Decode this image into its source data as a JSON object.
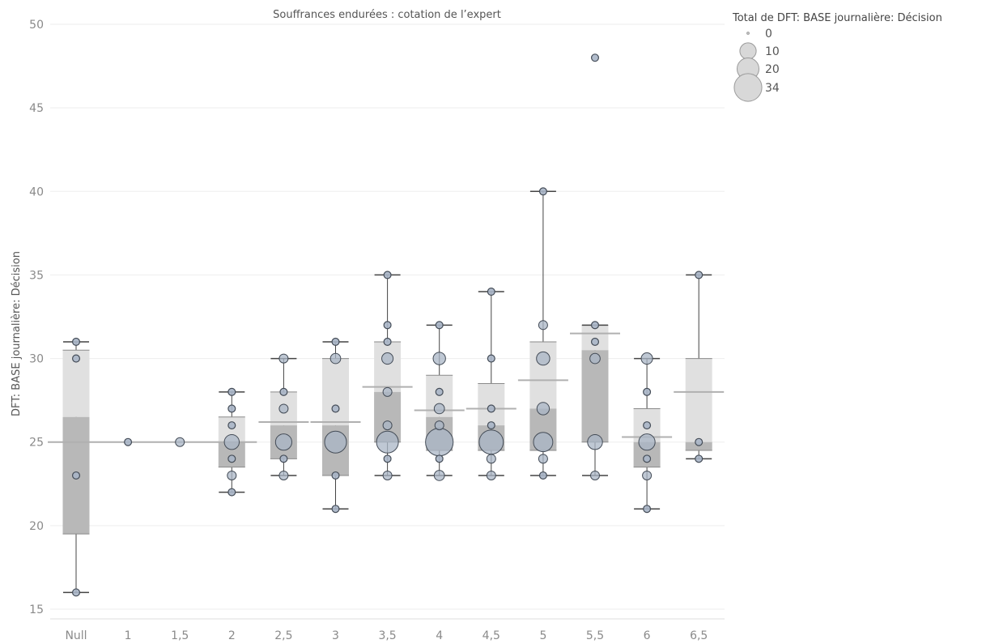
{
  "chart_data": {
    "type": "boxplot",
    "title": "Souffrances endurées : cotation de l’expert",
    "ylabel": "DFT: BASE journalière: Décision",
    "xlabel": "",
    "ylim": [
      15,
      50
    ],
    "yticks": [
      15,
      20,
      25,
      30,
      35,
      40,
      45,
      50
    ],
    "grid": true,
    "categories": [
      "Null",
      "1",
      "1,5",
      "2",
      "2,5",
      "3",
      "3,5",
      "4",
      "4,5",
      "5",
      "5,5",
      "6",
      "6,5"
    ],
    "boxes": [
      {
        "category": "Null",
        "whisker_low": 16,
        "q1": 19.5,
        "median": 26.5,
        "q3": 30.5,
        "whisker_high": 31,
        "ref_line": 25
      },
      {
        "category": "1",
        "whisker_low": 25,
        "q1": 25,
        "median": 25,
        "q3": 25,
        "whisker_high": 25,
        "ref_line": 25
      },
      {
        "category": "1,5",
        "whisker_low": 25,
        "q1": 25,
        "median": 25,
        "q3": 25,
        "whisker_high": 25,
        "ref_line": 25
      },
      {
        "category": "2",
        "whisker_low": 22,
        "q1": 23.5,
        "median": 25,
        "q3": 26.5,
        "whisker_high": 28,
        "ref_line": 25
      },
      {
        "category": "2,5",
        "whisker_low": 23,
        "q1": 24,
        "median": 26,
        "q3": 28,
        "whisker_high": 30,
        "ref_line": 26.2
      },
      {
        "category": "3",
        "whisker_low": 21,
        "q1": 23,
        "median": 26,
        "q3": 30,
        "whisker_high": 31,
        "ref_line": 26.2
      },
      {
        "category": "3,5",
        "whisker_low": 23,
        "q1": 25,
        "median": 28,
        "q3": 31,
        "whisker_high": 35,
        "ref_line": 28.3
      },
      {
        "category": "4",
        "whisker_low": 23,
        "q1": 24.5,
        "median": 26.5,
        "q3": 29,
        "whisker_high": 32,
        "ref_line": 26.9
      },
      {
        "category": "4,5",
        "whisker_low": 23,
        "q1": 24.5,
        "median": 26,
        "q3": 28.5,
        "whisker_high": 34,
        "ref_line": 27
      },
      {
        "category": "5",
        "whisker_low": 23,
        "q1": 24.5,
        "median": 27,
        "q3": 31,
        "whisker_high": 40,
        "ref_line": 28.7
      },
      {
        "category": "5,5",
        "whisker_low": 23,
        "q1": 25,
        "median": 30.5,
        "q3": 32,
        "whisker_high": 32,
        "ref_line": 31.5
      },
      {
        "category": "6",
        "whisker_low": 21,
        "q1": 23.5,
        "median": 25,
        "q3": 27,
        "whisker_high": 30,
        "ref_line": 25.3
      },
      {
        "category": "6,5",
        "whisker_low": 24,
        "q1": 24.5,
        "median": 25,
        "q3": 30,
        "whisker_high": 35,
        "ref_line": 28
      }
    ],
    "points": [
      {
        "category": "Null",
        "y": 31,
        "size": 1
      },
      {
        "category": "Null",
        "y": 30,
        "size": 1
      },
      {
        "category": "Null",
        "y": 23,
        "size": 1
      },
      {
        "category": "Null",
        "y": 16,
        "size": 1
      },
      {
        "category": "1",
        "y": 25,
        "size": 1
      },
      {
        "category": "1,5",
        "y": 25,
        "size": 2
      },
      {
        "category": "2",
        "y": 28,
        "size": 1
      },
      {
        "category": "2",
        "y": 27,
        "size": 1
      },
      {
        "category": "2",
        "y": 26,
        "size": 1
      },
      {
        "category": "2",
        "y": 25,
        "size": 8
      },
      {
        "category": "2",
        "y": 24,
        "size": 1
      },
      {
        "category": "2",
        "y": 23,
        "size": 2
      },
      {
        "category": "2",
        "y": 22,
        "size": 1
      },
      {
        "category": "2,5",
        "y": 30,
        "size": 2
      },
      {
        "category": "2,5",
        "y": 28,
        "size": 1
      },
      {
        "category": "2,5",
        "y": 27,
        "size": 2
      },
      {
        "category": "2,5",
        "y": 25,
        "size": 10
      },
      {
        "category": "2,5",
        "y": 24,
        "size": 1
      },
      {
        "category": "2,5",
        "y": 23,
        "size": 2
      },
      {
        "category": "3",
        "y": 31,
        "size": 1
      },
      {
        "category": "3",
        "y": 30,
        "size": 3
      },
      {
        "category": "3",
        "y": 27,
        "size": 1
      },
      {
        "category": "3",
        "y": 25,
        "size": 20
      },
      {
        "category": "3",
        "y": 23,
        "size": 1
      },
      {
        "category": "3",
        "y": 21,
        "size": 1
      },
      {
        "category": "3,5",
        "y": 35,
        "size": 1
      },
      {
        "category": "3,5",
        "y": 32,
        "size": 1
      },
      {
        "category": "3,5",
        "y": 31,
        "size": 1
      },
      {
        "category": "3,5",
        "y": 30,
        "size": 4
      },
      {
        "category": "3,5",
        "y": 28,
        "size": 2
      },
      {
        "category": "3,5",
        "y": 26,
        "size": 2
      },
      {
        "category": "3,5",
        "y": 25,
        "size": 20
      },
      {
        "category": "3,5",
        "y": 24,
        "size": 1
      },
      {
        "category": "3,5",
        "y": 23,
        "size": 2
      },
      {
        "category": "4",
        "y": 32,
        "size": 1
      },
      {
        "category": "4",
        "y": 30,
        "size": 5
      },
      {
        "category": "4",
        "y": 28,
        "size": 1
      },
      {
        "category": "4",
        "y": 27,
        "size": 3
      },
      {
        "category": "4",
        "y": 26,
        "size": 2
      },
      {
        "category": "4",
        "y": 25,
        "size": 34
      },
      {
        "category": "4",
        "y": 24,
        "size": 1
      },
      {
        "category": "4",
        "y": 23,
        "size": 3
      },
      {
        "category": "4,5",
        "y": 34,
        "size": 1
      },
      {
        "category": "4,5",
        "y": 30,
        "size": 1
      },
      {
        "category": "4,5",
        "y": 27,
        "size": 1
      },
      {
        "category": "4,5",
        "y": 26,
        "size": 1
      },
      {
        "category": "4,5",
        "y": 25,
        "size": 25
      },
      {
        "category": "4,5",
        "y": 24,
        "size": 2
      },
      {
        "category": "4,5",
        "y": 23,
        "size": 2
      },
      {
        "category": "5",
        "y": 40,
        "size": 1
      },
      {
        "category": "5",
        "y": 32,
        "size": 2
      },
      {
        "category": "5",
        "y": 30,
        "size": 6
      },
      {
        "category": "5",
        "y": 27,
        "size": 5
      },
      {
        "category": "5",
        "y": 25,
        "size": 15
      },
      {
        "category": "5",
        "y": 24,
        "size": 2
      },
      {
        "category": "5",
        "y": 23,
        "size": 1
      },
      {
        "category": "5,5",
        "y": 48,
        "size": 1
      },
      {
        "category": "5,5",
        "y": 32,
        "size": 1
      },
      {
        "category": "5,5",
        "y": 31,
        "size": 1
      },
      {
        "category": "5,5",
        "y": 30,
        "size": 3
      },
      {
        "category": "5,5",
        "y": 25,
        "size": 8
      },
      {
        "category": "5,5",
        "y": 23,
        "size": 2
      },
      {
        "category": "6",
        "y": 30,
        "size": 4
      },
      {
        "category": "6",
        "y": 28,
        "size": 1
      },
      {
        "category": "6",
        "y": 26,
        "size": 1
      },
      {
        "category": "6",
        "y": 25,
        "size": 10
      },
      {
        "category": "6",
        "y": 24,
        "size": 1
      },
      {
        "category": "6",
        "y": 23,
        "size": 2
      },
      {
        "category": "6",
        "y": 21,
        "size": 1
      },
      {
        "category": "6,5",
        "y": 35,
        "size": 1
      },
      {
        "category": "6,5",
        "y": 25,
        "size": 1
      },
      {
        "category": "6,5",
        "y": 24,
        "size": 1
      }
    ],
    "legend": {
      "title": "Total de DFT: BASE journalière: Décision",
      "placement": "top-right",
      "sizes": [
        0,
        10,
        20,
        34
      ],
      "labels": [
        "0",
        "10",
        "20",
        "34"
      ]
    },
    "colors": {
      "box_upper": "#e0e0e0",
      "box_lower": "#b8b8b8",
      "ref_line": "#b0b0b0",
      "point_fill": "#a9b5c6",
      "point_stroke": "#444c57",
      "whisker": "#444444",
      "grid": "#eeeeee"
    }
  }
}
